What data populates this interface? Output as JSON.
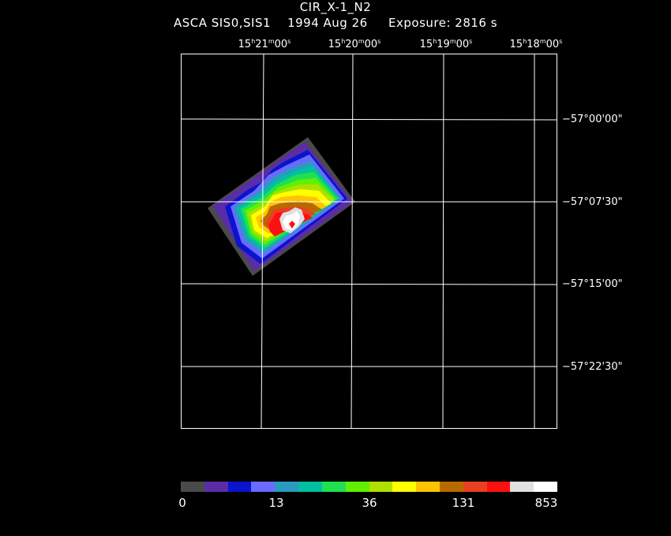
{
  "header": {
    "title": "CIR_X-1_N2",
    "instrument": "ASCA SIS0,SIS1",
    "date": "1994 Aug 26",
    "exposure": "Exposure: 2816 s"
  },
  "ra_labels": [
    {
      "h": "15",
      "m": "21",
      "s": "00"
    },
    {
      "h": "15",
      "m": "20",
      "s": "00"
    },
    {
      "h": "15",
      "m": "19",
      "s": "00"
    },
    {
      "h": "15",
      "m": "18",
      "s": "00"
    }
  ],
  "dec_labels": [
    "−57°00'00\"",
    "−57°07'30\"",
    "−57°15'00\"",
    "−57°22'30\""
  ],
  "colorbar": {
    "colors": [
      "#4a4a4a",
      "#5a2ca8",
      "#0a14cc",
      "#6a6aff",
      "#2a9ac0",
      "#00c0a0",
      "#20e050",
      "#60f000",
      "#b0e000",
      "#ffff00",
      "#ffc400",
      "#b86a00",
      "#e84020",
      "#ff1010",
      "#e0e0e0",
      "#ffffff"
    ],
    "ticks": [
      "0",
      "13",
      "36",
      "131",
      "853"
    ]
  }
}
